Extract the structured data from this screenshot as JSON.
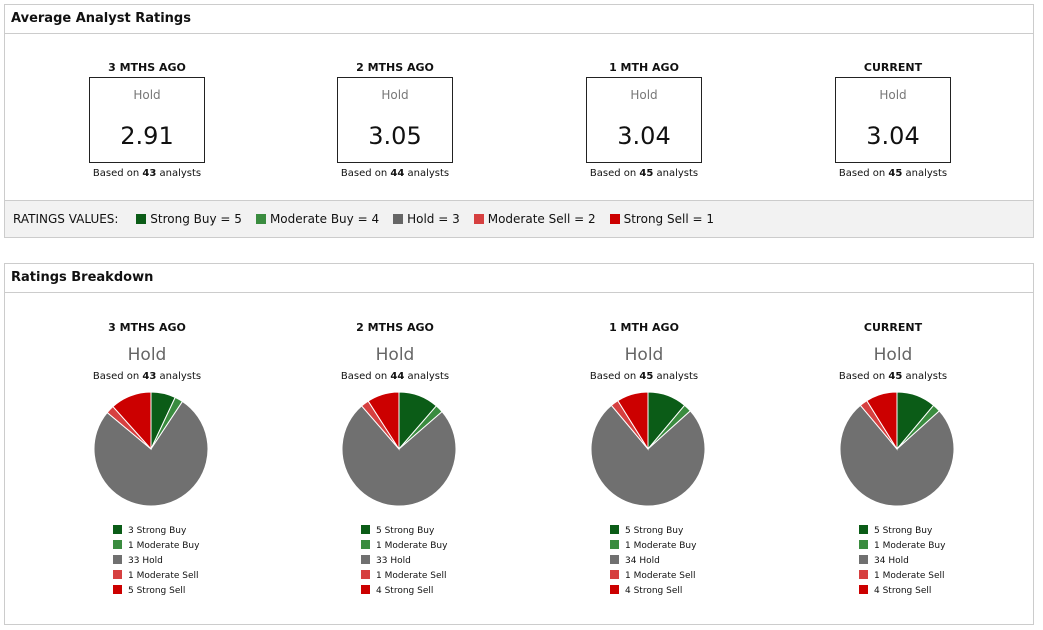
{
  "avg": {
    "title": "Average Analyst Ratings",
    "legend_title": "RATINGS VALUES:",
    "legend": [
      {
        "label": "Strong Buy = 5",
        "color": "#0b5c17"
      },
      {
        "label": "Moderate Buy = 4",
        "color": "#3a8c3f"
      },
      {
        "label": "Hold = 3",
        "color": "#666666"
      },
      {
        "label": "Moderate Sell = 2",
        "color": "#d64040"
      },
      {
        "label": "Strong Sell = 1",
        "color": "#cc0000"
      }
    ],
    "periods": [
      {
        "label": "3 MTHS AGO",
        "rating": "Hold",
        "value": "2.91",
        "based_pre": "Based on ",
        "count": "43",
        "based_post": " analysts"
      },
      {
        "label": "2 MTHS AGO",
        "rating": "Hold",
        "value": "3.05",
        "based_pre": "Based on ",
        "count": "44",
        "based_post": " analysts"
      },
      {
        "label": "1 MTH AGO",
        "rating": "Hold",
        "value": "3.04",
        "based_pre": "Based on ",
        "count": "45",
        "based_post": " analysts"
      },
      {
        "label": "CURRENT",
        "rating": "Hold",
        "value": "3.04",
        "based_pre": "Based on ",
        "count": "45",
        "based_post": " analysts"
      }
    ]
  },
  "breakdown": {
    "title": "Ratings Breakdown"
  },
  "chart_data": [
    {
      "type": "pie",
      "title": "3 MTHS AGO",
      "categories": [
        "Strong Buy",
        "Moderate Buy",
        "Hold",
        "Moderate Sell",
        "Strong Sell"
      ],
      "values": [
        3,
        1,
        33,
        1,
        5
      ],
      "labels": [
        "3 Strong Buy",
        "1 Moderate Buy",
        "33 Hold",
        "1 Moderate Sell",
        "5 Strong Sell"
      ],
      "colors": [
        "#0b5c17",
        "#3a8c3f",
        "#707070",
        "#d64040",
        "#cc0000"
      ]
    },
    {
      "type": "pie",
      "title": "2 MTHS AGO",
      "categories": [
        "Strong Buy",
        "Moderate Buy",
        "Hold",
        "Moderate Sell",
        "Strong Sell"
      ],
      "values": [
        5,
        1,
        33,
        1,
        4
      ],
      "labels": [
        "5 Strong Buy",
        "1 Moderate Buy",
        "33 Hold",
        "1 Moderate Sell",
        "4 Strong Sell"
      ],
      "colors": [
        "#0b5c17",
        "#3a8c3f",
        "#707070",
        "#d64040",
        "#cc0000"
      ]
    },
    {
      "type": "pie",
      "title": "1 MTH AGO",
      "categories": [
        "Strong Buy",
        "Moderate Buy",
        "Hold",
        "Moderate Sell",
        "Strong Sell"
      ],
      "values": [
        5,
        1,
        34,
        1,
        4
      ],
      "labels": [
        "5 Strong Buy",
        "1 Moderate Buy",
        "34 Hold",
        "1 Moderate Sell",
        "4 Strong Sell"
      ],
      "colors": [
        "#0b5c17",
        "#3a8c3f",
        "#707070",
        "#d64040",
        "#cc0000"
      ]
    },
    {
      "type": "pie",
      "title": "CURRENT",
      "categories": [
        "Strong Buy",
        "Moderate Buy",
        "Hold",
        "Moderate Sell",
        "Strong Sell"
      ],
      "values": [
        5,
        1,
        34,
        1,
        4
      ],
      "labels": [
        "5 Strong Buy",
        "1 Moderate Buy",
        "34 Hold",
        "1 Moderate Sell",
        "4 Strong Sell"
      ],
      "colors": [
        "#0b5c17",
        "#3a8c3f",
        "#707070",
        "#d64040",
        "#cc0000"
      ]
    }
  ]
}
